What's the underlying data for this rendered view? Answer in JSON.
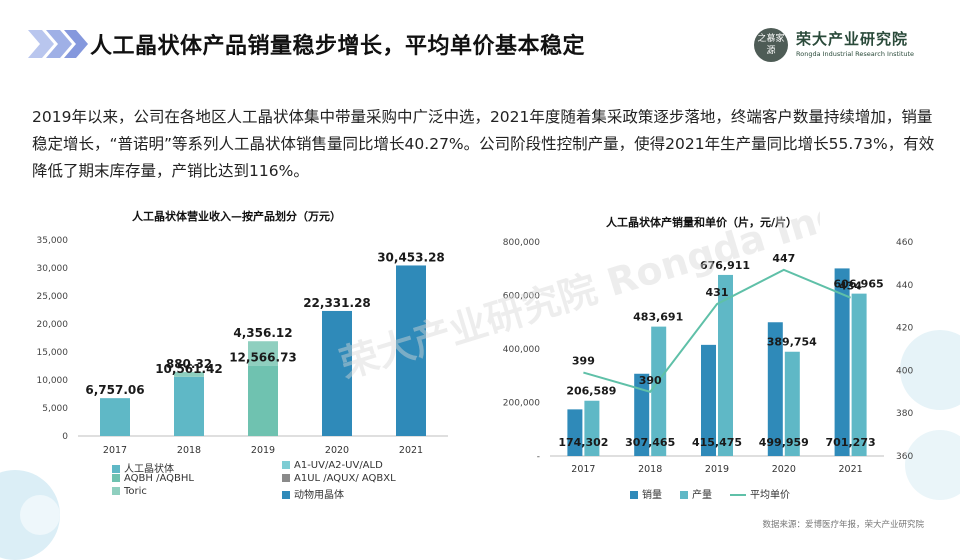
{
  "header": {
    "title": "人工晶状体产品销量稳步增长，平均单价基本稳定",
    "logo_seal": "之慕家源",
    "logo_cn": "荣大产业研究院",
    "logo_en": "Rongda Industrial Research Institute"
  },
  "paragraph": "2019年以来，公司在各地区人工晶状体集中带量采购中广泛中选，2021年度随着集采政策逐步落地，终端客户数量持续增加，销量稳定增长，“普诺明”等系列人工晶状体销售量同比增长40.27%。公司阶段性控制产量，使得2021年生产量同比增长55.73%，有效降低了期末库存量，产销比达到116%。",
  "watermark": "荣大产业研究院  Rongda Industrial Research Institute",
  "source": "数据来源：爱博医疗年报，荣大产业研究院",
  "colors": {
    "accent_dark": "#2f8ab9",
    "accent_light": "#5fb8c6",
    "green": "#7cc6b0",
    "grey": "#8a8a8a",
    "line": "#5fc0a8"
  },
  "chart_data": [
    {
      "type": "bar",
      "stacked": true,
      "title": "人工晶状体营业收入—按产品划分（万元）",
      "categories": [
        "2017",
        "2018",
        "2019",
        "2020",
        "2021"
      ],
      "ylim": [
        0,
        35000
      ],
      "yticks": [
        "35,000",
        "30,000",
        "25,000",
        "20,000",
        "15,000",
        "10,000",
        "5,000",
        "0"
      ],
      "series": [
        {
          "name": "人工晶状体",
          "color": "#5fb8c6",
          "values": [
            6757.06,
            10561.42,
            0,
            0,
            0
          ]
        },
        {
          "name": "A1-UV/A2-UV/ALD",
          "color": "#7ecdd4",
          "values": [
            0,
            0,
            0,
            0,
            0
          ]
        },
        {
          "name": "AQBH /AQBHL",
          "color": "#6fc2b0",
          "values": [
            0,
            0,
            12566.73,
            0,
            0
          ]
        },
        {
          "name": "A1UL /AQUX/ AQBXL",
          "color": "#8a8a8a",
          "values": [
            0,
            0,
            0,
            0,
            0
          ]
        },
        {
          "name": "Toric",
          "color": "#8fcfbf",
          "values": [
            0,
            880.32,
            4356.12,
            0,
            0
          ]
        },
        {
          "name": "动物用晶体",
          "color": "#2f8ab9",
          "values": [
            0,
            0,
            0,
            22331.28,
            30453.28
          ]
        }
      ],
      "data_labels": [
        {
          "text": "6,757.06",
          "cat": 0,
          "y": 6757.06
        },
        {
          "text": "10,561.42",
          "cat": 1,
          "y": 10561.42
        },
        {
          "text": "880.32",
          "cat": 1,
          "y": 11441.74
        },
        {
          "text": "12,566.73",
          "cat": 2,
          "y": 12566.73
        },
        {
          "text": "4,356.12",
          "cat": 2,
          "y": 16922.85
        },
        {
          "text": "22,331.28",
          "cat": 3,
          "y": 22331.28
        },
        {
          "text": "30,453.28",
          "cat": 4,
          "y": 30453.28
        }
      ]
    },
    {
      "type": "bar+line",
      "title": "人工晶状体产销量和单价（片，元/片）",
      "categories": [
        "2017",
        "2018",
        "2019",
        "2020",
        "2021"
      ],
      "ylim": [
        0,
        800000
      ],
      "yticks": [
        "800,000",
        "600,000",
        "400,000",
        "200,000",
        "-"
      ],
      "y2lim": [
        360,
        460
      ],
      "y2ticks": [
        "460",
        "440",
        "420",
        "400",
        "380",
        "360"
      ],
      "series": [
        {
          "name": "销量",
          "color": "#2f8ab9",
          "values": [
            174302,
            307465,
            415475,
            499959,
            701273
          ],
          "labels": [
            "174,302",
            "307,465",
            "415,475",
            "499,959",
            "701,273"
          ]
        },
        {
          "name": "产量",
          "color": "#5fb8c6",
          "values": [
            206589,
            483691,
            676911,
            389754,
            606965
          ],
          "labels": [
            "206,589",
            "483,691",
            "676,911",
            "389,754",
            "606,965"
          ]
        },
        {
          "name": "平均单价",
          "color": "#5fc0a8",
          "axis": "right",
          "values": [
            399,
            390,
            431,
            447,
            434
          ],
          "labels": [
            "399",
            "390",
            "431",
            "447",
            "434"
          ]
        }
      ]
    }
  ]
}
